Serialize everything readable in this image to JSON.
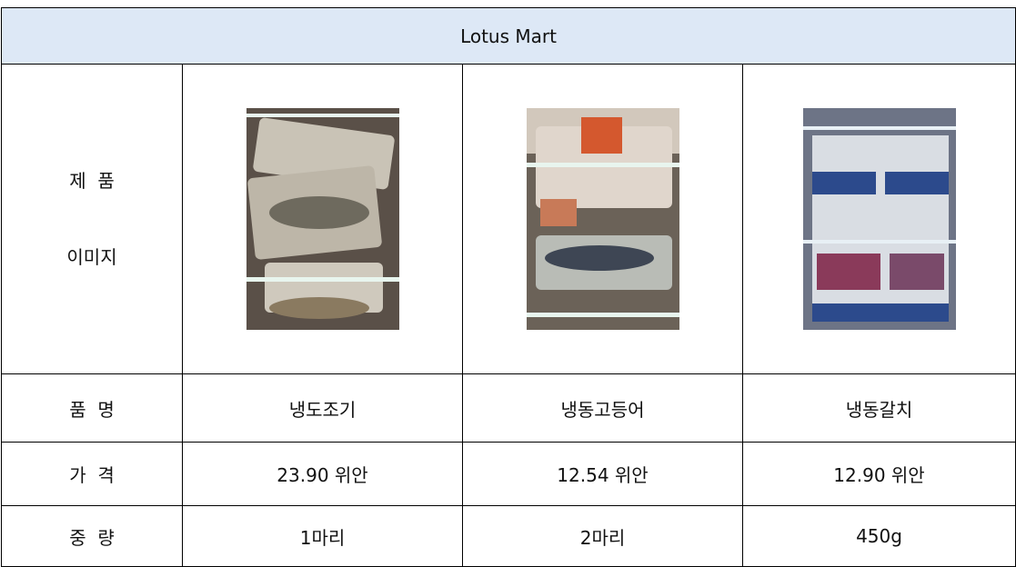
{
  "header": {
    "title": "Lotus Mart"
  },
  "table": {
    "image_row_label": [
      "제  품",
      "이미지"
    ],
    "rows": [
      [
        "품  명",
        "냉도조기",
        "냉동고등어",
        "냉동갈치"
      ],
      [
        "가  격",
        "23.90 위안",
        "12.54 위안",
        "12.90 위안"
      ],
      [
        "중  량",
        "1마리",
        "2마리",
        "450g"
      ]
    ]
  }
}
